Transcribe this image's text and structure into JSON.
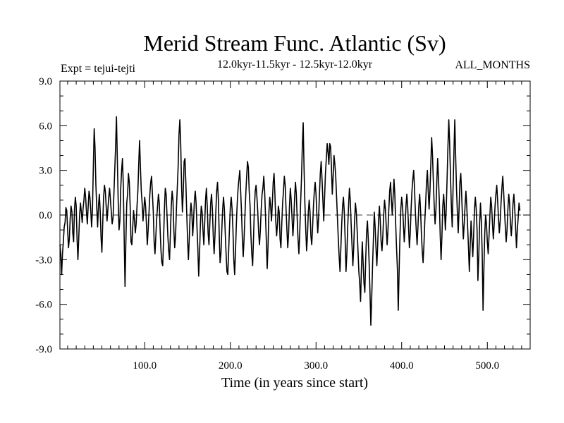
{
  "chart_data": {
    "type": "line",
    "title": "Merid Stream Func. Atlantic (Sv)",
    "subtitle": "12.0kyr-11.5kyr - 12.5kyr-12.0kyr",
    "left_label": "Expt = tejui-tejti",
    "right_label": "ALL_MONTHS",
    "xlabel": "Time (in years since start)",
    "ylabel": "",
    "xlim": [
      1,
      550
    ],
    "ylim": [
      -9,
      9
    ],
    "x_ticks": [
      100,
      200,
      300,
      400,
      500
    ],
    "x_tick_labels": [
      "100.0",
      "200.0",
      "300.0",
      "400.0",
      "500.0"
    ],
    "y_ticks": [
      -9,
      -6,
      -3,
      0,
      3,
      6,
      9
    ],
    "y_tick_labels": [
      "-9.0",
      "-6.0",
      "-3.0",
      "0.0",
      "3.0",
      "6.0",
      "9.0"
    ],
    "zero_line": "dashed",
    "series": [
      {
        "name": "Merid Stream Func. Atlantic",
        "x_start": 1,
        "x_step": 1,
        "values": [
          -2.0,
          -2.6,
          -4.0,
          -2.6,
          -1.8,
          -0.8,
          -0.5,
          0.5,
          0.3,
          -1.0,
          -2.2,
          -1.6,
          -0.2,
          0.6,
          0.2,
          -1.2,
          -1.8,
          0.4,
          1.2,
          0.6,
          -1.6,
          -3.0,
          -1.5,
          0.0,
          0.8,
          0.2,
          -0.5,
          0.4,
          1.0,
          1.8,
          1.2,
          0.2,
          -0.6,
          0.6,
          1.6,
          1.2,
          0.3,
          -0.8,
          0.4,
          3.2,
          5.8,
          4.5,
          2.0,
          0.5,
          -0.8,
          0.6,
          1.4,
          0.3,
          -1.5,
          -2.5,
          -0.5,
          1.2,
          2.0,
          1.6,
          0.6,
          -0.4,
          0.4,
          1.2,
          1.8,
          1.0,
          0.2,
          -0.6,
          -0.2,
          1.4,
          3.0,
          4.6,
          6.6,
          3.8,
          1.0,
          -1.0,
          -0.4,
          1.8,
          3.0,
          3.8,
          2.0,
          -1.5,
          -4.8,
          -1.8,
          0.8,
          1.4,
          2.8,
          2.2,
          0.6,
          -1.8,
          -2.0,
          -0.8,
          0.3,
          -0.3,
          -1.2,
          -0.6,
          0.6,
          1.6,
          3.4,
          5.0,
          3.2,
          1.6,
          0.8,
          -0.4,
          0.4,
          1.2,
          0.6,
          -0.6,
          -2.0,
          -1.0,
          0.2,
          1.4,
          2.2,
          2.6,
          1.4,
          0.2,
          -1.8,
          -2.6,
          -1.4,
          -0.2,
          0.6,
          1.4,
          0.8,
          -1.0,
          -2.4,
          -3.2,
          -3.4,
          -1.6,
          0.4,
          1.8,
          1.4,
          0.0,
          -1.4,
          -2.4,
          -3.0,
          -1.2,
          0.6,
          1.6,
          1.0,
          -1.0,
          -2.2,
          -1.4,
          0.4,
          1.8,
          3.2,
          5.4,
          6.4,
          4.8,
          2.0,
          0.2,
          1.6,
          3.6,
          3.8,
          2.2,
          0.2,
          -1.6,
          -3.0,
          -1.6,
          0.0,
          0.8,
          0.2,
          -1.4,
          -0.4,
          1.0,
          1.6,
          0.8,
          -0.8,
          -2.2,
          -4.1,
          -2.6,
          -0.6,
          0.6,
          0.2,
          -1.0,
          -2.0,
          -0.6,
          1.0,
          1.8,
          0.6,
          -1.2,
          -2.0,
          -0.6,
          0.8,
          1.4,
          0.4,
          -1.4,
          -2.6,
          -1.4,
          0.2,
          1.6,
          2.2,
          1.0,
          -1.4,
          -3.2,
          -2.6,
          -1.0,
          0.4,
          1.2,
          0.4,
          -1.2,
          -2.6,
          -3.8,
          -4.0,
          -2.4,
          -0.8,
          0.6,
          1.2,
          0.4,
          -1.0,
          -3.0,
          -4.0,
          -2.4,
          -0.6,
          0.8,
          1.8,
          2.4,
          3.0,
          1.6,
          0.2,
          -1.6,
          -2.8,
          -1.6,
          0.0,
          1.4,
          2.6,
          3.6,
          3.2,
          1.6,
          0.6,
          -1.4,
          -2.6,
          -3.4,
          -1.6,
          0.4,
          1.6,
          2.0,
          1.2,
          0.2,
          -1.2,
          -2.0,
          -1.0,
          0.4,
          1.4,
          1.8,
          2.6,
          1.6,
          0.0,
          -1.8,
          -3.6,
          -2.0,
          0.2,
          1.2,
          0.6,
          -0.4,
          0.8,
          2.2,
          2.8,
          1.4,
          -0.4,
          -1.4,
          -0.6,
          0.6,
          0.2,
          -1.6,
          -2.2,
          -0.6,
          0.8,
          1.6,
          2.6,
          2.0,
          0.4,
          -1.0,
          -2.2,
          -1.2,
          0.6,
          1.8,
          1.0,
          -0.2,
          -1.4,
          -0.4,
          1.2,
          2.2,
          1.4,
          -0.2,
          -1.6,
          -2.6,
          -1.2,
          0.8,
          2.4,
          4.6,
          6.2,
          3.2,
          0.8,
          -1.0,
          -2.4,
          -1.4,
          0.2,
          1.0,
          0.2,
          -1.4,
          -2.0,
          -0.8,
          0.6,
          1.6,
          2.2,
          1.4,
          0.0,
          -1.2,
          -0.2,
          1.4,
          2.8,
          3.6,
          2.4,
          1.0,
          -0.4,
          1.2,
          2.8,
          3.8,
          4.8,
          4.2,
          3.4,
          4.8,
          4.6,
          3.2,
          1.4,
          2.6,
          4.0,
          3.4,
          2.6,
          1.2,
          -0.2,
          -1.6,
          -2.8,
          -3.8,
          -2.2,
          -0.6,
          0.6,
          1.2,
          0.2,
          -1.6,
          -3.8,
          -2.6,
          -0.8,
          0.6,
          1.8,
          1.0,
          -0.6,
          -2.0,
          -3.4,
          -2.2,
          -0.4,
          0.8,
          0.2,
          -1.0,
          -2.4,
          -3.8,
          -4.6,
          -5.8,
          -3.6,
          -1.8,
          -3.2,
          -4.6,
          -5.2,
          -3.0,
          -1.2,
          -0.4,
          -1.6,
          -3.2,
          -5.2,
          -7.4,
          -5.6,
          -3.4,
          -1.6,
          0.2,
          -0.8,
          -2.2,
          -3.4,
          -2.0,
          -0.4,
          0.6,
          -0.4,
          -1.8,
          -2.4,
          -1.4,
          0.0,
          1.0,
          0.4,
          -0.8,
          -2.0,
          -1.0,
          0.4,
          1.6,
          2.2,
          1.0,
          0.0,
          1.2,
          2.4,
          1.4,
          -0.6,
          -2.2,
          -3.6,
          -6.4,
          -3.8,
          -1.4,
          0.4,
          1.2,
          0.6,
          -0.6,
          -1.8,
          -0.8,
          0.6,
          1.4,
          0.6,
          -0.8,
          -2.2,
          -1.2,
          0.4,
          1.6,
          2.4,
          3.0,
          1.8,
          0.2,
          -1.0,
          -2.0,
          -0.8,
          0.6,
          1.4,
          0.4,
          -1.2,
          -2.4,
          -3.2,
          -2.0,
          -0.4,
          0.8,
          2.2,
          3.0,
          1.6,
          0.4,
          1.6,
          3.4,
          5.2,
          4.0,
          2.2,
          0.6,
          -0.6,
          0.4,
          2.2,
          3.8,
          2.4,
          0.8,
          -1.4,
          -3.0,
          -1.4,
          0.6,
          1.4,
          0.4,
          -1.0,
          0.4,
          2.4,
          4.6,
          6.4,
          4.8,
          2.6,
          0.6,
          -0.8,
          1.8,
          4.2,
          6.4,
          4.0,
          1.8,
          0.2,
          -1.2,
          0.4,
          2.2,
          2.8,
          1.4,
          -0.2,
          -1.6,
          -0.6,
          0.6,
          1.6,
          0.6,
          -0.8,
          -2.2,
          -3.8,
          -2.0,
          -0.4,
          -1.6,
          -2.8,
          -1.4,
          0.4,
          1.2,
          0.4,
          -1.0,
          -4.4,
          -2.8,
          -0.6,
          0.8,
          -0.4,
          -2.6,
          -6.4,
          -3.6,
          -1.2,
          0.0,
          -0.6,
          -1.8,
          -2.6,
          -1.4,
          0.0,
          1.2,
          0.6,
          -0.6,
          -1.6,
          -0.6,
          0.6,
          1.4,
          2.0,
          1.0,
          -0.2,
          -1.2,
          -0.4,
          0.8,
          1.8,
          2.6,
          1.6,
          0.4,
          -0.8,
          -1.8,
          -1.0,
          0.4,
          1.4,
          0.8,
          -0.6,
          -1.4,
          -0.4,
          0.8,
          1.4,
          0.4,
          -0.8,
          -2.2,
          -1.0,
          -0.2,
          0.8,
          0.3
        ]
      }
    ]
  }
}
